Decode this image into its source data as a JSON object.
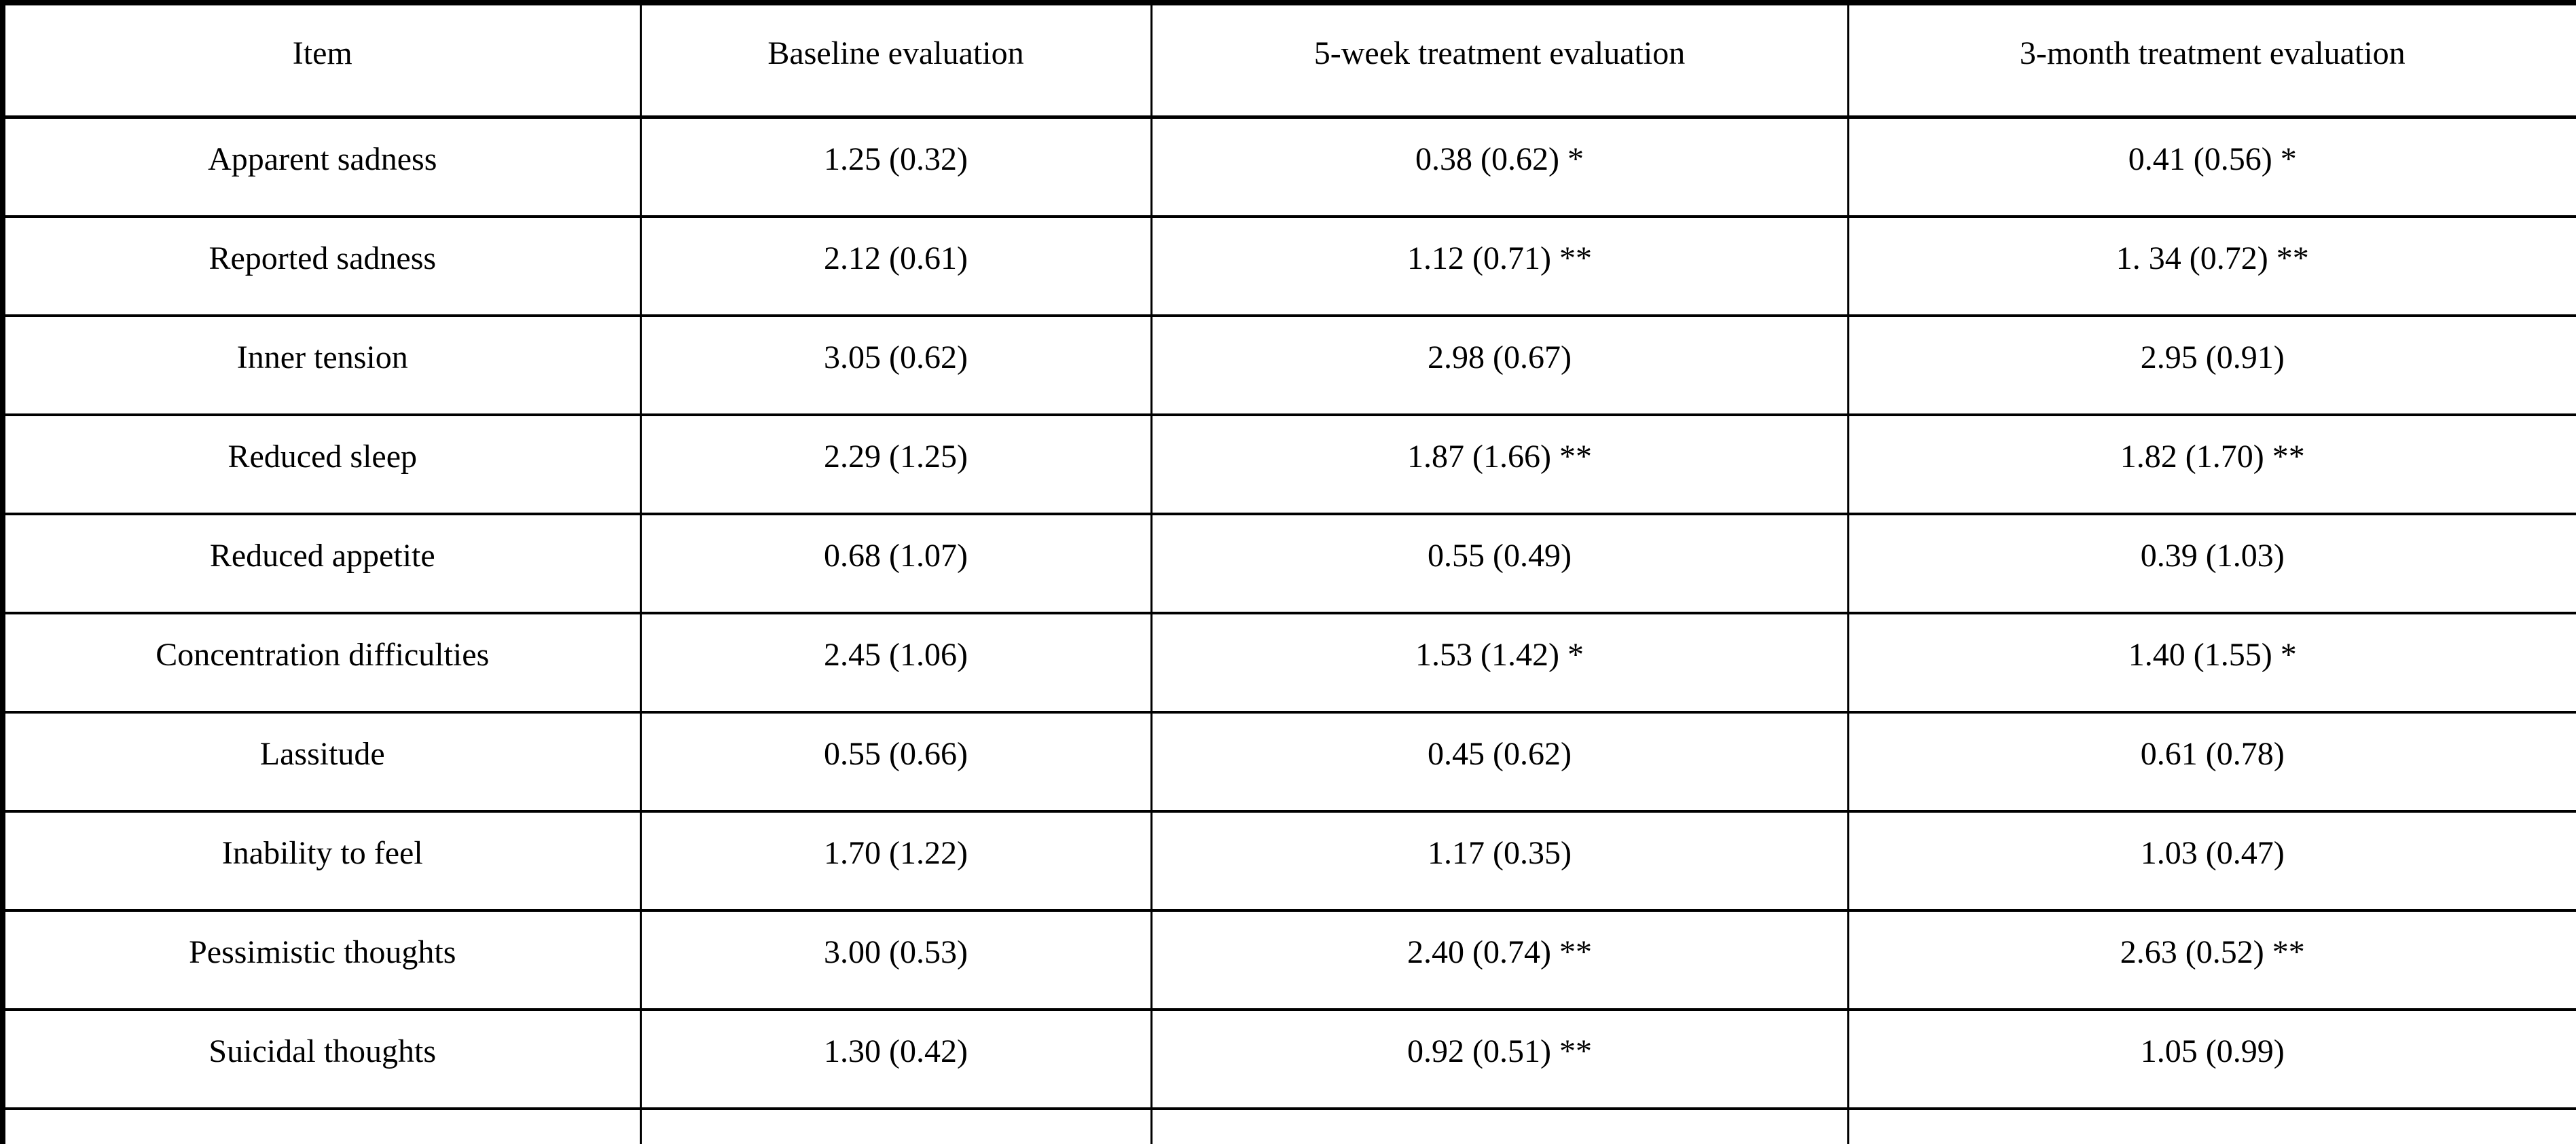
{
  "page": {
    "background_color": "#ffffff",
    "text_color": "#000000",
    "border_color": "#000000"
  },
  "table": {
    "columns": [
      "Item",
      "Baseline evaluation",
      "5-week treatment evaluation",
      "3-month treatment evaluation"
    ],
    "rows": [
      [
        "Apparent sadness",
        "1.25 (0.32)",
        "0.38 (0.62) *",
        "0.41 (0.56) *"
      ],
      [
        "Reported sadness",
        "2.12 (0.61)",
        "1.12 (0.71) **",
        "1. 34 (0.72) **"
      ],
      [
        "Inner tension",
        "3.05 (0.62)",
        "2.98 (0.67)",
        "2.95 (0.91)"
      ],
      [
        "Reduced sleep",
        "2.29 (1.25)",
        "1.87 (1.66) **",
        "1.82 (1.70) **"
      ],
      [
        "Reduced appetite",
        "0.68 (1.07)",
        "0.55 (0.49)",
        "0.39 (1.03)"
      ],
      [
        "Concentration difficulties",
        "2.45 (1.06)",
        "1.53 (1.42) *",
        "1.40 (1.55) *"
      ],
      [
        "Lassitude",
        "0.55 (0.66)",
        "0.45 (0.62)",
        "0.61 (0.78)"
      ],
      [
        "Inability to feel",
        "1.70 (1.22)",
        "1.17 (0.35)",
        "1.03 (0.47)"
      ],
      [
        "Pessimistic thoughts",
        "3.00 (0.53)",
        "2.40 (0.74) **",
        "2.63 (0.52) **"
      ],
      [
        "Suicidal thoughts",
        "1.30 (0.42)",
        "0.92 (0.51) **",
        "1.05 (0.99)"
      ],
      [
        "",
        "",
        "",
        ""
      ]
    ]
  }
}
